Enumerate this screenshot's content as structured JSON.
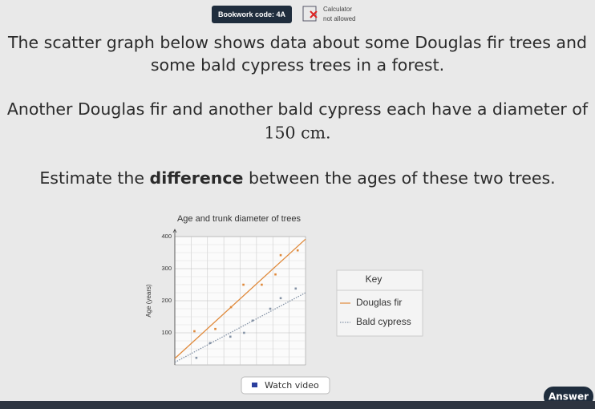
{
  "header": {
    "bookwork_code": "Bookwork code: 4A",
    "calculator": "Calculator",
    "calculator_status": "not allowed"
  },
  "question": {
    "lines": [
      "The scatter graph below shows data about some Douglas fir trees and",
      "some bald cypress trees in a forest.",
      "Another Douglas fir and another bald cypress each have a diameter of",
      "150 cm."
    ],
    "task": [
      "Estimate the ",
      "difference",
      " between the ages of these two trees."
    ]
  },
  "chart_data": {
    "type": "scatter",
    "title": "Age and trunk diameter of trees",
    "y_label": "Age (years)",
    "xlim": [
      0,
      200
    ],
    "ylim": [
      0,
      400
    ],
    "yticks": [
      100,
      200,
      300,
      400
    ],
    "grid": true,
    "legend_title": "Key",
    "series": [
      {
        "name": "Douglas fir",
        "color": "#e0893a",
        "line_style": "solid",
        "x": [
          30,
          62,
          86,
          105,
          133,
          154,
          162,
          188
        ],
        "values": [
          105,
          112,
          180,
          250,
          250,
          282,
          342,
          357
        ],
        "trend_x": [
          0,
          200
        ],
        "trend_values": [
          20,
          392
        ]
      },
      {
        "name": "Bald cypress",
        "color": "#8593a6",
        "line_style": "dotted",
        "x": [
          33,
          54,
          85,
          106,
          119,
          146,
          162,
          185
        ],
        "values": [
          22,
          68,
          88,
          100,
          138,
          175,
          208,
          238
        ],
        "trend_x": [
          0,
          200
        ],
        "trend_values": [
          8,
          225
        ]
      }
    ]
  },
  "buttons": {
    "video": "Watch video",
    "answer": "Answer"
  }
}
